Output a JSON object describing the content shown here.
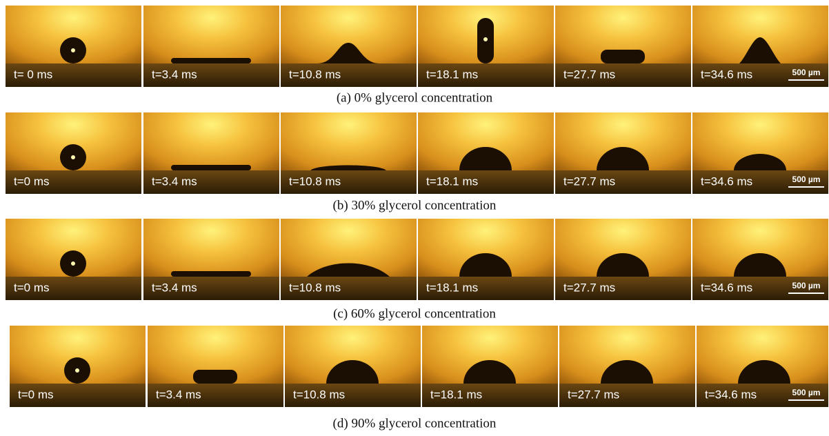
{
  "panels": [
    {
      "caption": "(a) 0% glycerol concentration",
      "frames": [
        "t= 0 ms",
        "t=3.4 ms",
        "t=10.8 ms",
        "t=18.1 ms",
        "t=27.7 ms",
        "t=34.6 ms"
      ],
      "scale_bar": "500 µm"
    },
    {
      "caption": "(b) 30% glycerol concentration",
      "frames": [
        "t=0 ms",
        "t=3.4 ms",
        "t=10.8 ms",
        "t=18.1 ms",
        "t=27.7 ms",
        "t=34.6 ms"
      ],
      "scale_bar": "500 µm"
    },
    {
      "caption": "(c) 60% glycerol concentration",
      "frames": [
        "t=0 ms",
        "t=3.4 ms",
        "t=10.8 ms",
        "t=18.1 ms",
        "t=27.7 ms",
        "t=34.6 ms"
      ],
      "scale_bar": "500 µm"
    },
    {
      "caption": "(d) 90% glycerol concentration",
      "frames": [
        "t=0 ms",
        "t=3.4 ms",
        "t=10.8 ms",
        "t=18.1 ms",
        "t=27.7 ms",
        "t=34.6 ms"
      ],
      "scale_bar": "500 µm"
    }
  ]
}
